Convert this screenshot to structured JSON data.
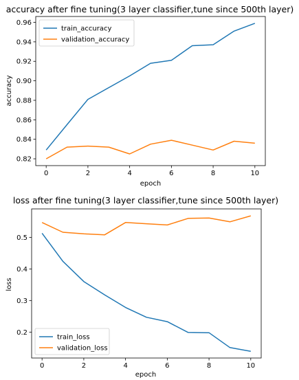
{
  "chart_data": [
    {
      "type": "line",
      "title": "accuracy after fine tuning(3 layer classifier,tune since 500th layer)",
      "xlabel": "epoch",
      "ylabel": "accuracy",
      "x": [
        0,
        1,
        2,
        3,
        4,
        5,
        6,
        7,
        8,
        9,
        10
      ],
      "xlim": [
        -0.5,
        10.5
      ],
      "ylim": [
        0.813,
        0.966
      ],
      "xticks": [
        0,
        2,
        4,
        6,
        8,
        10
      ],
      "xtick_labels": [
        "0",
        "2",
        "4",
        "6",
        "8",
        "10"
      ],
      "yticks": [
        0.82,
        0.84,
        0.86,
        0.88,
        0.9,
        0.92,
        0.94,
        0.96
      ],
      "ytick_labels": [
        "0.82",
        "0.84",
        "0.86",
        "0.88",
        "0.90",
        "0.92",
        "0.94",
        "0.96"
      ],
      "legend_position": "upper-left",
      "grid": false,
      "series": [
        {
          "name": "train_accuracy",
          "color": "#1f77b4",
          "values": [
            0.829,
            0.855,
            0.881,
            0.893,
            0.905,
            0.918,
            0.921,
            0.936,
            0.937,
            0.951,
            0.959
          ]
        },
        {
          "name": "validation_accuracy",
          "color": "#ff7f0e",
          "values": [
            0.82,
            0.832,
            0.833,
            0.832,
            0.825,
            0.835,
            0.839,
            0.834,
            0.829,
            0.838,
            0.836
          ]
        }
      ]
    },
    {
      "type": "line",
      "title": "loss after fine tuning(3 layer classifier,tune since 500th layer)",
      "xlabel": "epoch",
      "ylabel": "loss",
      "x": [
        0,
        1,
        2,
        3,
        4,
        5,
        6,
        7,
        8,
        9,
        10
      ],
      "xlim": [
        -0.5,
        10.5
      ],
      "ylim": [
        0.118,
        0.59
      ],
      "xticks": [
        0,
        2,
        4,
        6,
        8,
        10
      ],
      "xtick_labels": [
        "0",
        "2",
        "4",
        "6",
        "8",
        "10"
      ],
      "yticks": [
        0.2,
        0.3,
        0.4,
        0.5
      ],
      "ytick_labels": [
        "0.2",
        "0.3",
        "0.4",
        "0.5"
      ],
      "legend_position": "lower-left",
      "grid": false,
      "series": [
        {
          "name": "train_loss",
          "color": "#1f77b4",
          "values": [
            0.513,
            0.424,
            0.36,
            0.318,
            0.278,
            0.247,
            0.233,
            0.199,
            0.198,
            0.151,
            0.139
          ]
        },
        {
          "name": "validation_loss",
          "color": "#ff7f0e",
          "values": [
            0.547,
            0.516,
            0.511,
            0.508,
            0.547,
            0.543,
            0.539,
            0.56,
            0.561,
            0.549,
            0.568
          ]
        }
      ]
    }
  ]
}
